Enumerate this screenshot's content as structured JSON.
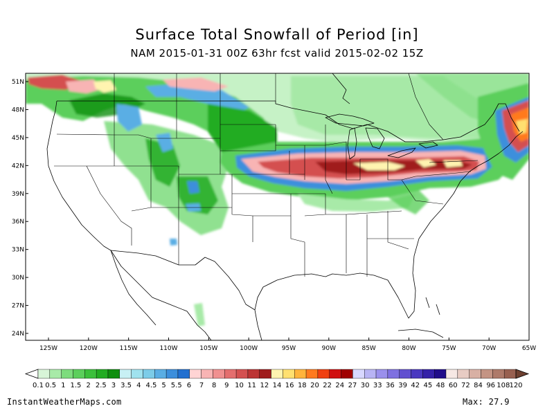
{
  "title": "Surface Total Snowfall of Period [in]",
  "subtitle": "NAM 2015-01-31 00Z 63hr fcst valid 2015-02-02 15Z",
  "lat_labels": [
    "51N",
    "48N",
    "45N",
    "42N",
    "39N",
    "36N",
    "33N",
    "30N",
    "27N",
    "24N"
  ],
  "lat_values": [
    51,
    48,
    45,
    42,
    39,
    36,
    33,
    30,
    27,
    24
  ],
  "lon_labels": [
    "125W",
    "120W",
    "115W",
    "110W",
    "105W",
    "100W",
    "95W",
    "90W",
    "85W",
    "80W",
    "75W",
    "70W",
    "65W"
  ],
  "lon_values": [
    -125,
    -120,
    -115,
    -110,
    -105,
    -100,
    -95,
    -90,
    -85,
    -80,
    -75,
    -70,
    -65
  ],
  "colorbar": {
    "labels": [
      "0.1",
      "0.5",
      "1",
      "1.5",
      "2",
      "2.5",
      "3",
      "3.5",
      "4",
      "4.5",
      "5",
      "5.5",
      "6",
      "7",
      "8",
      "9",
      "10",
      "11",
      "12",
      "14",
      "16",
      "18",
      "20",
      "22",
      "24",
      "27",
      "30",
      "33",
      "36",
      "39",
      "42",
      "45",
      "48",
      "60",
      "72",
      "84",
      "96",
      "108",
      "120"
    ],
    "colors": [
      "#d8f5d8",
      "#a8eaa8",
      "#7ddc7d",
      "#5ccf5c",
      "#3cc03c",
      "#22ac22",
      "#0e8e0e",
      "#c8f0f4",
      "#a0e2ee",
      "#7ccce8",
      "#5aaee4",
      "#3c8fdc",
      "#2270d0",
      "#ffd4d4",
      "#f8b4b4",
      "#f09090",
      "#e46e6e",
      "#d45050",
      "#bc3434",
      "#a01c1c",
      "#fff4b0",
      "#ffe070",
      "#ffb43c",
      "#ff7a1e",
      "#f04010",
      "#d01010",
      "#a00000",
      "#d8d8ff",
      "#b8b4f4",
      "#9a90ec",
      "#7e70e0",
      "#6250d0",
      "#4a38c0",
      "#3420a8",
      "#200c8a",
      "#f6e8e4",
      "#e8ccc4",
      "#d8b0a4",
      "#c49484",
      "#ae7a6a",
      "#986050"
    ]
  },
  "footer_site": "InstantWeatherMaps.com",
  "footer_max": "Max:  27.9",
  "legend_colors": {
    "light_green": "#bdf0bd",
    "green": "#3cc03c",
    "dark_green": "#0e8e0e",
    "light_blue": "#a0e2ee",
    "blue": "#3c8fdc",
    "pink": "#f8b4b4",
    "red": "#d45050",
    "dark_red": "#a01c1c",
    "yellow": "#fff4b0"
  }
}
